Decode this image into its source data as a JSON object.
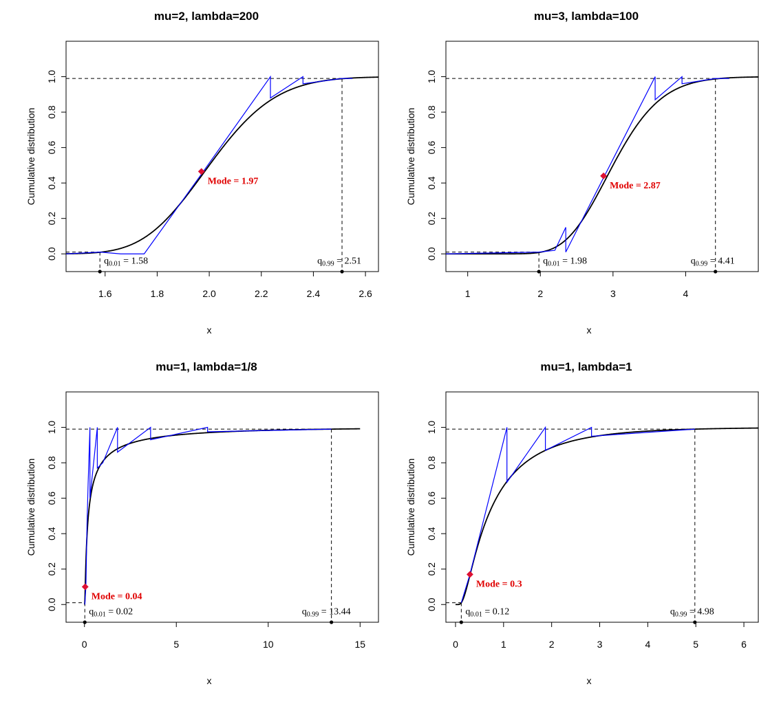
{
  "chart_data": [
    {
      "type": "line",
      "title": "mu=2, lambda=200",
      "xlabel": "x",
      "ylabel": "Cumulative distribution",
      "xlim": [
        1.45,
        2.65
      ],
      "ylim": [
        -0.1,
        1.2
      ],
      "xticks": [
        1.6,
        1.8,
        2.0,
        2.2,
        2.4,
        2.6
      ],
      "xtick_labels": [
        "1.6",
        "1.8",
        "2.0",
        "2.2",
        "2.4",
        "2.6"
      ],
      "yticks": [
        0.0,
        0.2,
        0.4,
        0.6,
        0.8,
        1.0
      ],
      "ytick_labels": [
        "0.0",
        "0.2",
        "0.4",
        "0.6",
        "0.8",
        "1.0"
      ],
      "params": {
        "mu": 2,
        "lambda": 200
      },
      "curve_range": [
        1.45,
        2.65
      ],
      "mode": {
        "x": 1.97,
        "y": 0.465,
        "label": "Mode = 1.97"
      },
      "q01": {
        "x": 1.58,
        "label_main": "q",
        "label_sub": "0.01",
        "label_value": " = 1.58"
      },
      "q99": {
        "x": 2.51,
        "label_main": "q",
        "label_sub": "0.99",
        "label_value": " = 2.51"
      },
      "series": [
        {
          "color": "#0000ff",
          "x": [
            1.45,
            1.58,
            1.66,
            1.75,
            1.75,
            1.97,
            2.235,
            2.235,
            2.36,
            2.36,
            2.51,
            2.55
          ],
          "y": [
            0.0,
            0.01,
            0.0,
            0.0,
            0.0,
            0.45,
            1.0,
            0.88,
            1.0,
            0.96,
            0.99,
            0.99
          ]
        }
      ]
    },
    {
      "type": "line",
      "title": "mu=3, lambda=100",
      "xlabel": "x",
      "ylabel": "Cumulative distribution",
      "xlim": [
        0.7,
        5.0
      ],
      "ylim": [
        -0.1,
        1.2
      ],
      "xticks": [
        1,
        2,
        3,
        4
      ],
      "xtick_labels": [
        "1",
        "2",
        "3",
        "4"
      ],
      "yticks": [
        0.0,
        0.2,
        0.4,
        0.6,
        0.8,
        1.0
      ],
      "ytick_labels": [
        "0.0",
        "0.2",
        "0.4",
        "0.6",
        "0.8",
        "1.0"
      ],
      "params": {
        "mu": 3,
        "lambda": 100
      },
      "curve_range": [
        0.7,
        5.0
      ],
      "mode": {
        "x": 2.87,
        "y": 0.44,
        "label": "Mode = 2.87"
      },
      "q01": {
        "x": 1.98,
        "label_main": "q",
        "label_sub": "0.01",
        "label_value": " = 1.98"
      },
      "q99": {
        "x": 4.41,
        "label_main": "q",
        "label_sub": "0.99",
        "label_value": " = 4.41"
      },
      "series": [
        {
          "color": "#0000ff",
          "x": [
            0.7,
            1.98,
            2.2,
            2.35,
            2.35,
            2.87,
            3.58,
            3.58,
            3.95,
            3.95,
            4.41,
            4.6
          ],
          "y": [
            0.0,
            0.01,
            0.02,
            0.15,
            0.01,
            0.43,
            1.0,
            0.87,
            1.0,
            0.96,
            0.99,
            0.99
          ]
        }
      ]
    },
    {
      "type": "line",
      "title": "mu=1, lambda=1/8",
      "xlabel": "x",
      "ylabel": "Cumulative distribution",
      "xlim": [
        -1.0,
        16.0
      ],
      "ylim": [
        -0.1,
        1.2
      ],
      "xticks": [
        0,
        5,
        10,
        15
      ],
      "xtick_labels": [
        "0",
        "5",
        "10",
        "15"
      ],
      "yticks": [
        0.0,
        0.2,
        0.4,
        0.6,
        0.8,
        1.0
      ],
      "ytick_labels": [
        "0.0",
        "0.2",
        "0.4",
        "0.6",
        "0.8",
        "1.0"
      ],
      "params": {
        "mu": 1,
        "lambda": 0.125
      },
      "curve_range": [
        0.0,
        15.0
      ],
      "mode": {
        "x": 0.04,
        "y": 0.1,
        "label": "Mode = 0.04"
      },
      "q01": {
        "x": 0.02,
        "label_main": "q",
        "label_sub": "0.01",
        "label_value": " = 0.02"
      },
      "q99": {
        "x": 13.44,
        "label_main": "q",
        "label_sub": "0.99",
        "label_value": " = 13.44"
      },
      "series": [
        {
          "color": "#0000ff",
          "x": [
            0.02,
            0.08,
            0.14,
            0.2,
            0.3,
            0.3,
            0.7,
            0.7,
            1.0,
            1.8,
            1.8,
            3.6,
            3.6,
            6.7,
            6.7,
            13.44
          ],
          "y": [
            0.0,
            0.1,
            0.45,
            0.68,
            1.0,
            0.6,
            1.0,
            0.77,
            0.8,
            1.0,
            0.86,
            1.0,
            0.93,
            1.0,
            0.975,
            0.99
          ]
        }
      ]
    },
    {
      "type": "line",
      "title": "mu=1, lambda=1",
      "xlabel": "x",
      "ylabel": "Cumulative distribution",
      "xlim": [
        -0.2,
        6.3
      ],
      "ylim": [
        -0.1,
        1.2
      ],
      "xticks": [
        0,
        1,
        2,
        3,
        4,
        5,
        6
      ],
      "xtick_labels": [
        "0",
        "1",
        "2",
        "3",
        "4",
        "5",
        "6"
      ],
      "yticks": [
        0.0,
        0.2,
        0.4,
        0.6,
        0.8,
        1.0
      ],
      "ytick_labels": [
        "0.0",
        "0.2",
        "0.4",
        "0.6",
        "0.8",
        "1.0"
      ],
      "params": {
        "mu": 1,
        "lambda": 1
      },
      "curve_range": [
        0.0,
        6.3
      ],
      "mode": {
        "x": 0.3,
        "y": 0.17,
        "label": "Mode = 0.3"
      },
      "q01": {
        "x": 0.12,
        "label_main": "q",
        "label_sub": "0.01",
        "label_value": " = 0.12"
      },
      "q99": {
        "x": 4.98,
        "label_main": "q",
        "label_sub": "0.99",
        "label_value": " = 4.98"
      },
      "series": [
        {
          "color": "#0000ff",
          "x": [
            0.12,
            0.3,
            1.07,
            1.07,
            1.87,
            1.87,
            2.83,
            2.83,
            4.98
          ],
          "y": [
            0.01,
            0.17,
            1.0,
            0.69,
            1.0,
            0.87,
            1.0,
            0.95,
            0.99
          ]
        }
      ]
    }
  ]
}
